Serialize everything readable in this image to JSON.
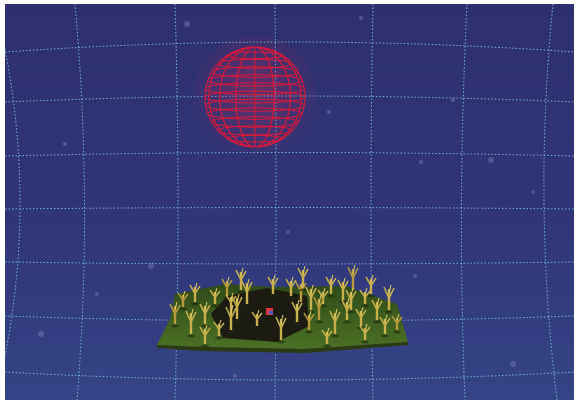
{
  "scene": {
    "background_top": "#2e2f6e",
    "background_bottom": "#344486",
    "grid_color": "#7ec8df",
    "sphere_color": "#d9183a",
    "terrain_color": "#3e5d1e",
    "clearing_color": "#1b1b12",
    "tree_color": "#c8b14c",
    "marker_color": "#d63a44",
    "grid_style": "dotted",
    "sphere_style": "wireframe"
  },
  "icons": {
    "sphere": "wireframe-sphere-icon",
    "tree": "tree-icon",
    "marker": "player-marker-icon"
  }
}
